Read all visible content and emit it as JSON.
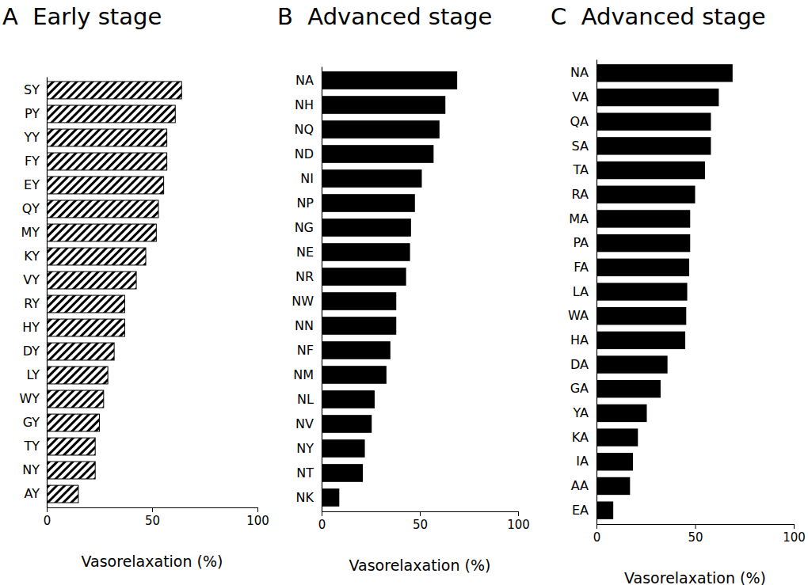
{
  "chart_data": [
    {
      "type": "bar",
      "title": "A  Early stage",
      "orientation": "horizontal",
      "color": "#000000",
      "marker": "hatch",
      "x_label": "Vasorelaxation (%)",
      "categories": [
        "SY",
        "PY",
        "YY",
        "FY",
        "EY",
        "QY",
        "MY",
        "KY",
        "VY",
        "RY",
        "HY",
        "DY",
        "LY",
        "WY",
        "GY",
        "TY",
        "NY",
        "AY"
      ],
      "values": [
        64,
        61,
        57,
        57,
        55.5,
        53,
        52,
        47,
        42.5,
        37,
        37,
        32,
        29,
        27,
        25,
        23,
        23,
        15
      ],
      "xlim": [
        0,
        100
      ],
      "xticks": [
        0,
        50,
        100
      ]
    },
    {
      "type": "bar",
      "title": "B  Advanced stage",
      "orientation": "horizontal",
      "color": "#000000",
      "x_label": "Vasorelaxation (%)",
      "categories": [
        "NA",
        "NH",
        "NQ",
        "ND",
        "NI",
        "NP",
        "NG",
        "NE",
        "NR",
        "NW",
        "NN",
        "NF",
        "NM",
        "NL",
        "NV",
        "NY",
        "NT",
        "NK"
      ],
      "values": [
        69,
        63,
        60,
        57,
        51,
        47.5,
        45.5,
        45,
        43,
        38,
        38,
        35,
        33,
        27,
        25.5,
        22,
        21,
        9
      ],
      "xlim": [
        0,
        100
      ],
      "xticks": [
        0,
        50,
        100
      ]
    },
    {
      "type": "bar",
      "title": "C  Advanced stage",
      "orientation": "horizontal",
      "color": "#000000",
      "x_label": "Vasorelaxation (%)",
      "categories": [
        "NA",
        "VA",
        "QA",
        "SA",
        "TA",
        "RA",
        "MA",
        "PA",
        "FA",
        "LA",
        "WA",
        "HA",
        "DA",
        "GA",
        "YA",
        "KA",
        "IA",
        "AA",
        "EA"
      ],
      "values": [
        69,
        62,
        58,
        58,
        55,
        50,
        47.5,
        47.5,
        47,
        46,
        45.5,
        45,
        36,
        32.5,
        25.5,
        21,
        18.5,
        17,
        8.5
      ],
      "xlim": [
        0,
        100
      ],
      "xticks": [
        0,
        50,
        100
      ]
    }
  ]
}
